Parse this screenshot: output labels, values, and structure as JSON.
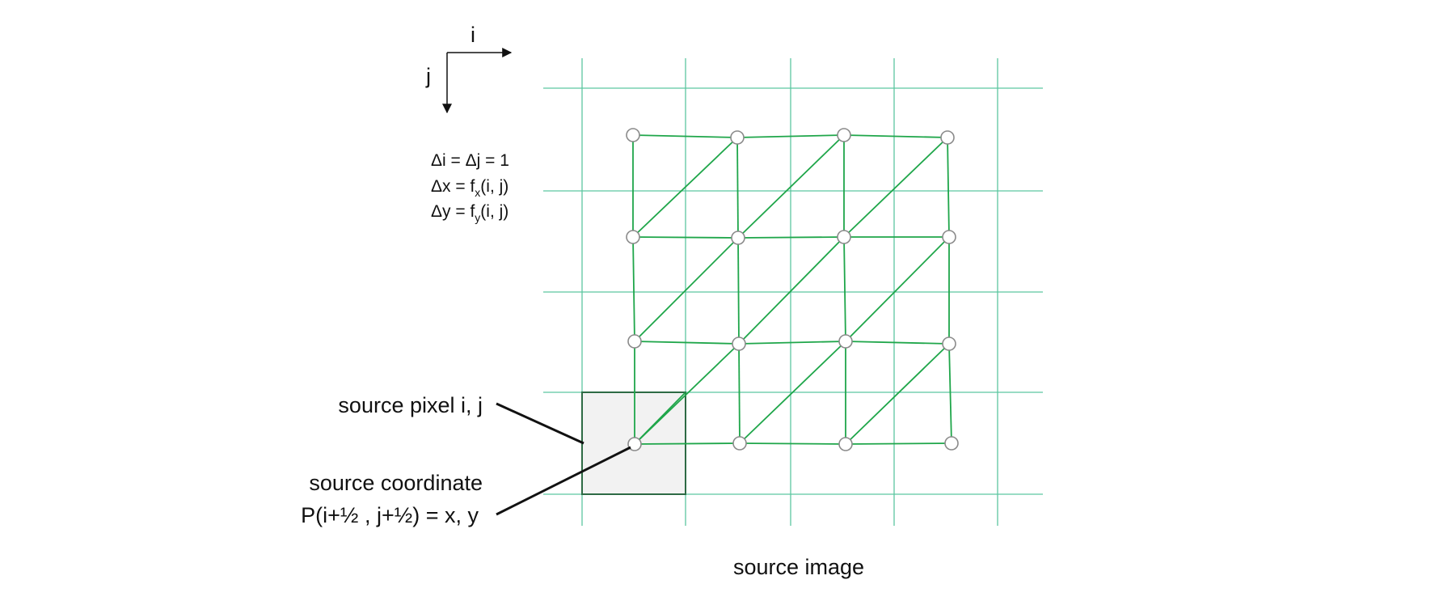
{
  "axes": {
    "i_label": "i",
    "j_label": "j"
  },
  "equations": {
    "line1": "Δi = Δj = 1",
    "line2_prefix": "Δx = f",
    "line2_sub": "x",
    "line2_suffix": "(i, j)",
    "line3_prefix": "Δy = f",
    "line3_sub": "y",
    "line3_suffix": "(i, j)"
  },
  "labels": {
    "source_pixel": "source pixel i, j",
    "source_coordinate": "source coordinate",
    "source_coordinate_formula": "P(i+½ , j+½) = x, y",
    "source_image": "source image"
  },
  "colors": {
    "grid": "#5cc7a0",
    "mesh": "#1fa64a",
    "node_stroke": "#8a8a8a",
    "pixel_fill": "#f2f2f2",
    "pixel_stroke": "#2e6b45",
    "leader": "#111111"
  }
}
